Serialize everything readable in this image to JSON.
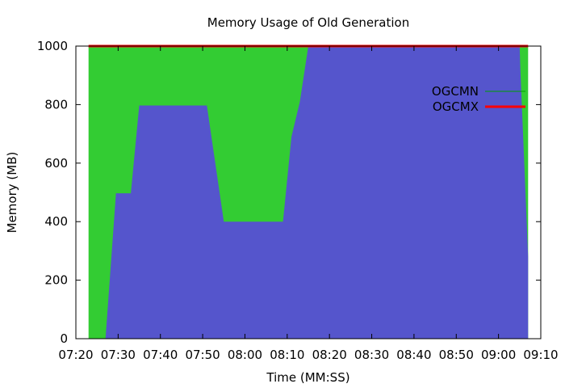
{
  "chart_data": {
    "type": "area",
    "title": "Memory Usage of Old Generation",
    "xlabel": "Time (MM:SS)",
    "ylabel": "Memory (MB)",
    "xlim": [
      "07:20",
      "09:10"
    ],
    "ylim": [
      0,
      1000
    ],
    "x_ticks": [
      "07:20",
      "07:30",
      "07:40",
      "07:50",
      "08:00",
      "08:10",
      "08:20",
      "08:30",
      "08:40",
      "08:50",
      "09:00",
      "09:10"
    ],
    "y_ticks": [
      0,
      200,
      400,
      600,
      800,
      1000
    ],
    "grid": false,
    "legend_position": "top-right",
    "legend": [
      {
        "label": "OGCMN",
        "color": "#00a000",
        "style": "thin-line"
      },
      {
        "label": "OGCMX",
        "color": "#ff0000",
        "style": "thick-line"
      }
    ],
    "fill_series": [
      {
        "role": "capacity",
        "color": "#33cc33",
        "points": [
          [
            "07:23:00",
            0
          ],
          [
            "07:23:00",
            1000
          ],
          [
            "09:07:00",
            1000
          ],
          [
            "09:07:00",
            0
          ]
        ]
      },
      {
        "role": "used",
        "color": "#5555cc",
        "points": [
          [
            "07:27:00",
            0
          ],
          [
            "07:29:30",
            497
          ],
          [
            "07:33:00",
            497
          ],
          [
            "07:35:00",
            797
          ],
          [
            "07:51:00",
            797
          ],
          [
            "07:55:00",
            400
          ],
          [
            "08:09:00",
            400
          ],
          [
            "08:11:00",
            690
          ],
          [
            "08:13:00",
            810
          ],
          [
            "08:15:00",
            1000
          ],
          [
            "09:05:00",
            1000
          ],
          [
            "09:05:10",
            920
          ],
          [
            "09:07:00",
            280
          ],
          [
            "09:07:00",
            0
          ]
        ]
      }
    ],
    "series": [
      {
        "name": "OGCMN",
        "color": "#00a000",
        "points": [
          [
            "07:23:00",
            1000
          ],
          [
            "09:07:00",
            1000
          ]
        ]
      },
      {
        "name": "OGCMX",
        "color": "#ff0000",
        "points": [
          [
            "07:23:00",
            1000
          ],
          [
            "09:07:00",
            1000
          ]
        ]
      }
    ]
  }
}
